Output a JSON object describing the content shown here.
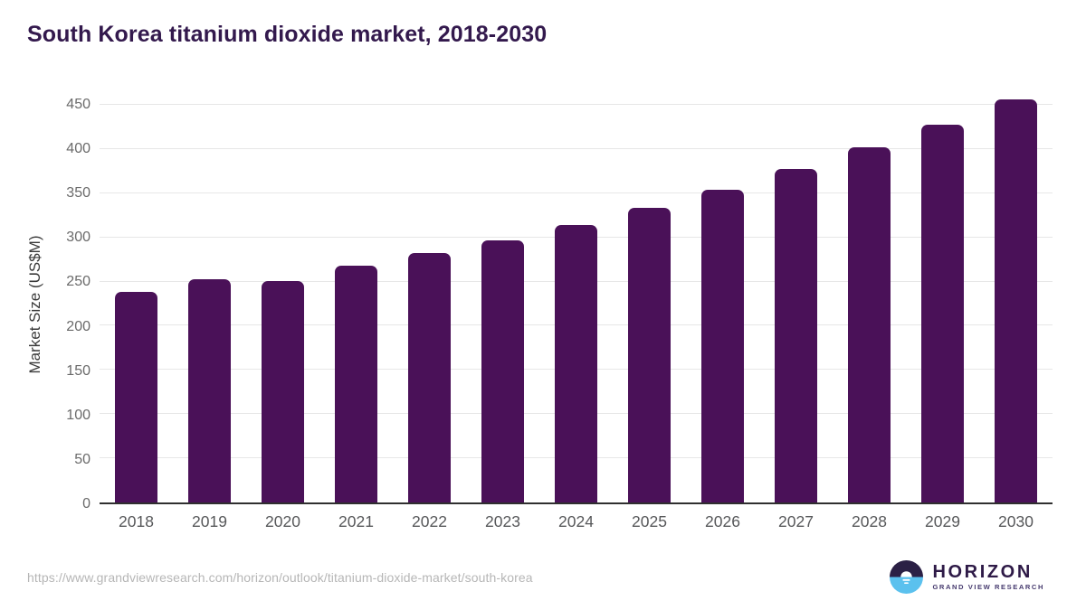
{
  "page_title": "South Korea titanium dioxide market, 2018-2030",
  "chart_data": {
    "type": "bar",
    "title": "South Korea titanium dioxide market, 2018-2030",
    "categories": [
      "2018",
      "2019",
      "2020",
      "2021",
      "2022",
      "2023",
      "2024",
      "2025",
      "2026",
      "2027",
      "2028",
      "2029",
      "2030"
    ],
    "values": [
      238,
      253,
      251,
      268,
      282,
      297,
      314,
      333,
      354,
      377,
      402,
      428,
      456
    ],
    "xlabel": "",
    "ylabel": "Market Size (US$M)",
    "ylim": [
      0,
      450
    ],
    "ytick_step": 50,
    "yticks": [
      0,
      50,
      100,
      150,
      200,
      250,
      300,
      350,
      400,
      450
    ],
    "grid": "horizontal",
    "legend": "none",
    "bar_color": "#4a1158"
  },
  "footer": {
    "source_url": "https://www.grandviewresearch.com/horizon/outlook/titanium-dioxide-market/south-korea",
    "logo": {
      "brand": "HORIZON",
      "tagline": "GRAND VIEW RESEARCH"
    }
  },
  "colors": {
    "title_text": "#33194d",
    "bar_fill": "#4a1158",
    "gridline": "#e7e7e7",
    "axis_line": "#2f2f2f",
    "y_tick_label": "#6a6a6a",
    "x_tick_label": "#57585a",
    "source_url_text": "#b6b6b6",
    "logo_dark": "#2b2045",
    "logo_blue": "#5bc1ee"
  }
}
